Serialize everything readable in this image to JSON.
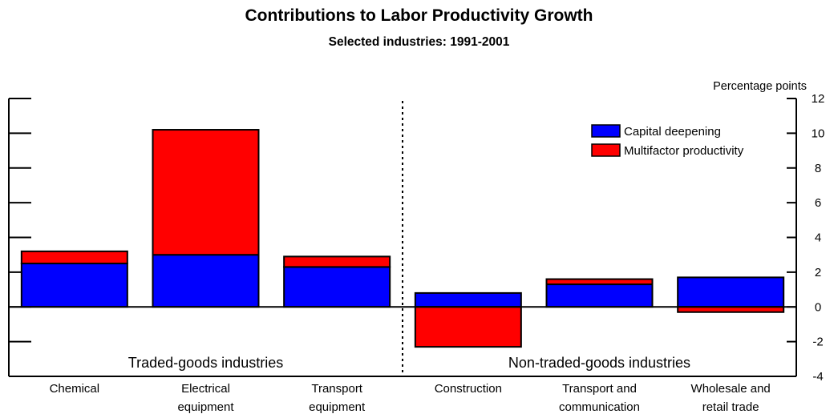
{
  "title": "Contributions to Labor Productivity Growth",
  "subtitle": "Selected industries: 1991-2001",
  "chart_data": {
    "type": "bar",
    "stacked": true,
    "title": "Contributions to Labor Productivity Growth",
    "subtitle": "Selected industries: 1991-2001",
    "ylabel": "Percentage points",
    "y_axis_side": "right",
    "ylim": [
      -4,
      12
    ],
    "yticks": [
      12,
      10,
      8,
      6,
      4,
      2,
      0,
      -2,
      -4
    ],
    "categories": [
      [
        "Chemical"
      ],
      [
        "Electrical",
        "equipment"
      ],
      [
        "Transport",
        "equipment"
      ],
      [
        "Construction"
      ],
      [
        "Transport and",
        "communication"
      ],
      [
        "Wholesale and",
        "retail trade"
      ]
    ],
    "series": [
      {
        "name": "Capital deepening",
        "color": "#0000ff",
        "values": [
          2.5,
          3.0,
          2.3,
          0.8,
          1.3,
          1.7
        ]
      },
      {
        "name": "Multifactor productivity",
        "color": "#ff0000",
        "values": [
          0.7,
          7.2,
          0.6,
          -2.3,
          0.3,
          -0.3
        ]
      }
    ],
    "groups": [
      {
        "label": "Traded-goods industries",
        "categories": [
          0,
          1,
          2
        ]
      },
      {
        "label": "Non-traded-goods industries",
        "categories": [
          3,
          4,
          5
        ]
      }
    ],
    "group_divider": "dashed",
    "legend_position": "top-right",
    "grid": false
  }
}
